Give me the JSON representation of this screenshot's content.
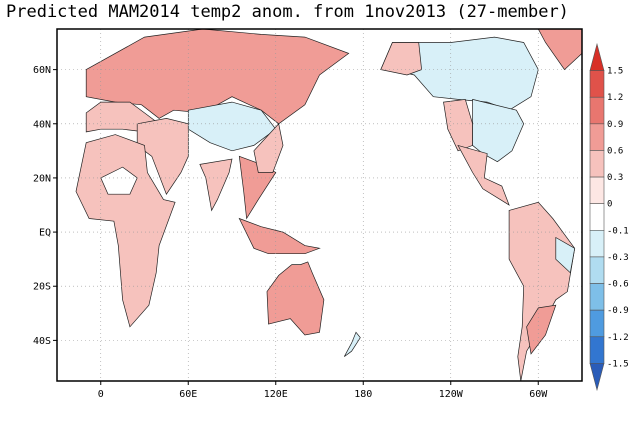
{
  "title": "Predicted MAM2014 temp2 anom. from 1nov2013 (27-member)",
  "map": {
    "projection": "equirectangular",
    "lon_range": [
      -30,
      330
    ],
    "lat_range": [
      -55,
      75
    ],
    "grid": "dotted",
    "lat_labels": [
      {
        "lat": 60,
        "text": "60N"
      },
      {
        "lat": 40,
        "text": "40N"
      },
      {
        "lat": 20,
        "text": "20N"
      },
      {
        "lat": 0,
        "text": "EQ"
      },
      {
        "lat": -20,
        "text": "20S"
      },
      {
        "lat": -40,
        "text": "40S"
      }
    ],
    "lon_labels": [
      {
        "lon": 0,
        "text": "0"
      },
      {
        "lon": 60,
        "text": "60E"
      },
      {
        "lon": 120,
        "text": "120E"
      },
      {
        "lon": 180,
        "text": "180"
      },
      {
        "lon": 240,
        "text": "120W"
      },
      {
        "lon": 300,
        "text": "60W"
      }
    ],
    "anomaly_regions": [
      {
        "name": "Eurasia",
        "value": 0.6,
        "poly": [
          [
            -10,
            60
          ],
          [
            30,
            72
          ],
          [
            70,
            75
          ],
          [
            110,
            73
          ],
          [
            140,
            72
          ],
          [
            170,
            66
          ],
          [
            150,
            58
          ],
          [
            140,
            47
          ],
          [
            122,
            40
          ],
          [
            110,
            45
          ],
          [
            90,
            50
          ],
          [
            70,
            44
          ],
          [
            50,
            45
          ],
          [
            40,
            42
          ],
          [
            28,
            47
          ],
          [
            10,
            48
          ],
          [
            -10,
            50
          ]
        ]
      },
      {
        "name": "Europe south",
        "value": 0.3,
        "poly": [
          [
            -10,
            44
          ],
          [
            0,
            48
          ],
          [
            20,
            48
          ],
          [
            30,
            44
          ],
          [
            40,
            40
          ],
          [
            30,
            37
          ],
          [
            15,
            38
          ],
          [
            0,
            38
          ],
          [
            -10,
            37
          ]
        ]
      },
      {
        "name": "Middle East",
        "value": 0.3,
        "poly": [
          [
            25,
            40
          ],
          [
            45,
            42
          ],
          [
            60,
            40
          ],
          [
            60,
            28
          ],
          [
            55,
            22
          ],
          [
            45,
            14
          ],
          [
            35,
            28
          ],
          [
            25,
            32
          ]
        ]
      },
      {
        "name": "Central Asia",
        "value": -0.3,
        "poly": [
          [
            60,
            45
          ],
          [
            90,
            48
          ],
          [
            110,
            45
          ],
          [
            120,
            38
          ],
          [
            105,
            32
          ],
          [
            90,
            30
          ],
          [
            75,
            33
          ],
          [
            60,
            38
          ]
        ]
      },
      {
        "name": "India",
        "value": 0.3,
        "poly": [
          [
            68,
            25
          ],
          [
            90,
            27
          ],
          [
            88,
            22
          ],
          [
            80,
            12
          ],
          [
            76,
            8
          ],
          [
            72,
            20
          ]
        ]
      },
      {
        "name": "Southeast Asia",
        "value": 0.6,
        "poly": [
          [
            95,
            28
          ],
          [
            110,
            25
          ],
          [
            120,
            22
          ],
          [
            108,
            12
          ],
          [
            100,
            5
          ],
          [
            98,
            15
          ]
        ]
      },
      {
        "name": "East China",
        "value": 0.3,
        "poly": [
          [
            105,
            30
          ],
          [
            122,
            40
          ],
          [
            125,
            32
          ],
          [
            118,
            22
          ],
          [
            108,
            22
          ]
        ]
      },
      {
        "name": "Indonesia",
        "value": 0.6,
        "poly": [
          [
            95,
            5
          ],
          [
            110,
            2
          ],
          [
            125,
            0
          ],
          [
            140,
            -5
          ],
          [
            150,
            -6
          ],
          [
            140,
            -8
          ],
          [
            115,
            -8
          ],
          [
            105,
            -6
          ]
        ]
      },
      {
        "name": "Africa",
        "value": 0.3,
        "poly": [
          [
            -17,
            15
          ],
          [
            -10,
            33
          ],
          [
            10,
            36
          ],
          [
            30,
            32
          ],
          [
            32,
            22
          ],
          [
            43,
            12
          ],
          [
            51,
            11
          ],
          [
            40,
            -5
          ],
          [
            38,
            -15
          ],
          [
            33,
            -27
          ],
          [
            20,
            -35
          ],
          [
            15,
            -25
          ],
          [
            12,
            -5
          ],
          [
            9,
            4
          ],
          [
            -8,
            5
          ]
        ]
      },
      {
        "name": "Sahara cool",
        "value": -0.1,
        "poly": [
          [
            0,
            20
          ],
          [
            15,
            24
          ],
          [
            25,
            20
          ],
          [
            20,
            14
          ],
          [
            5,
            14
          ]
        ]
      },
      {
        "name": "Australia",
        "value": 0.6,
        "poly": [
          [
            114,
            -22
          ],
          [
            122,
            -16
          ],
          [
            131,
            -12
          ],
          [
            137,
            -12
          ],
          [
            142,
            -11
          ],
          [
            145,
            -15
          ],
          [
            153,
            -25
          ],
          [
            150,
            -37
          ],
          [
            140,
            -38
          ],
          [
            130,
            -32
          ],
          [
            115,
            -34
          ]
        ]
      },
      {
        "name": "New Zealand",
        "value": -0.3,
        "poly": [
          [
            167,
            -46
          ],
          [
            172,
            -41
          ],
          [
            175,
            -37
          ],
          [
            178,
            -39
          ],
          [
            172,
            -44
          ]
        ]
      },
      {
        "name": "Canada",
        "value": -0.3,
        "poly": [
          [
            192,
            60
          ],
          [
            200,
            70
          ],
          [
            240,
            70
          ],
          [
            270,
            72
          ],
          [
            290,
            70
          ],
          [
            300,
            60
          ],
          [
            295,
            50
          ],
          [
            280,
            45
          ],
          [
            265,
            48
          ],
          [
            245,
            49
          ],
          [
            228,
            50
          ],
          [
            215,
            58
          ],
          [
            200,
            60
          ]
        ]
      },
      {
        "name": "Alaska",
        "value": 0.3,
        "poly": [
          [
            192,
            60
          ],
          [
            200,
            70
          ],
          [
            218,
            70
          ],
          [
            220,
            60
          ],
          [
            210,
            58
          ]
        ]
      },
      {
        "name": "USA west",
        "value": 0.3,
        "poly": [
          [
            235,
            48
          ],
          [
            250,
            49
          ],
          [
            255,
            40
          ],
          [
            255,
            32
          ],
          [
            245,
            30
          ],
          [
            238,
            38
          ]
        ]
      },
      {
        "name": "USA east",
        "value": -0.3,
        "poly": [
          [
            255,
            49
          ],
          [
            285,
            45
          ],
          [
            290,
            40
          ],
          [
            282,
            30
          ],
          [
            272,
            26
          ],
          [
            262,
            29
          ],
          [
            255,
            32
          ]
        ]
      },
      {
        "name": "Mexico",
        "value": 0.3,
        "poly": [
          [
            245,
            32
          ],
          [
            265,
            29
          ],
          [
            263,
            20
          ],
          [
            275,
            17
          ],
          [
            280,
            10
          ],
          [
            262,
            16
          ],
          [
            255,
            22
          ]
        ]
      },
      {
        "name": "Greenland",
        "value": 0.6,
        "poly": [
          [
            300,
            75
          ],
          [
            335,
            75
          ],
          [
            330,
            66
          ],
          [
            318,
            60
          ],
          [
            305,
            70
          ]
        ]
      },
      {
        "name": "South America",
        "value": 0.3,
        "poly": [
          [
            280,
            8
          ],
          [
            300,
            11
          ],
          [
            310,
            5
          ],
          [
            325,
            -6
          ],
          [
            320,
            -22
          ],
          [
            312,
            -25
          ],
          [
            302,
            -35
          ],
          [
            292,
            -44
          ],
          [
            288,
            -55
          ],
          [
            286,
            -46
          ],
          [
            289,
            -35
          ],
          [
            290,
            -20
          ],
          [
            280,
            -10
          ],
          [
            280,
            -2
          ]
        ]
      },
      {
        "name": "Brazil cool",
        "value": -0.3,
        "poly": [
          [
            312,
            -2
          ],
          [
            325,
            -6
          ],
          [
            322,
            -15
          ],
          [
            312,
            -10
          ]
        ]
      },
      {
        "name": "Southern Cone",
        "value": 0.6,
        "poly": [
          [
            300,
            -28
          ],
          [
            312,
            -27
          ],
          [
            305,
            -38
          ],
          [
            295,
            -45
          ],
          [
            292,
            -35
          ]
        ]
      }
    ]
  },
  "colorbar": {
    "levels": [
      "1.5",
      "1.2",
      "0.9",
      "0.6",
      "0.3",
      "0",
      "-0.1",
      "-0.3",
      "-0.6",
      "-0.9",
      "-1.2",
      "-1.5"
    ],
    "colors": [
      "#d73027",
      "#e0524a",
      "#e8766f",
      "#f09c96",
      "#f6c2bd",
      "#fde7e4",
      "#ffffff",
      "#d8f0f8",
      "#b0dcf0",
      "#7ebfe8",
      "#4f9be0",
      "#3276d0",
      "#2a5cb8"
    ]
  }
}
